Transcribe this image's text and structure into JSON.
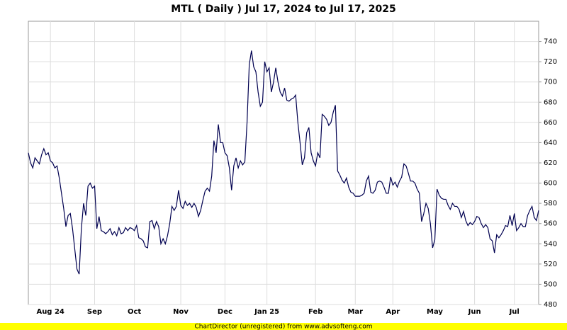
{
  "chart_data": {
    "type": "line",
    "title": "MTL ( Daily ) Jul 17, 2024 to Jul 17, 2025",
    "footer": "ChartDirector (unregistered) from www.advsofteng.com",
    "color": "#000050",
    "grid": true,
    "y_axis_side": "right",
    "xlim": [
      0,
      231
    ],
    "xticks": [
      {
        "value": 10,
        "label": "Aug 24"
      },
      {
        "value": 30,
        "label": "Sep"
      },
      {
        "value": 48,
        "label": "Oct"
      },
      {
        "value": 69,
        "label": "Nov"
      },
      {
        "value": 89,
        "label": "Dec"
      },
      {
        "value": 108,
        "label": "Jan 25"
      },
      {
        "value": 130,
        "label": "Feb"
      },
      {
        "value": 148,
        "label": "Mar"
      },
      {
        "value": 165,
        "label": "Apr"
      },
      {
        "value": 184,
        "label": "May"
      },
      {
        "value": 202,
        "label": "Jun"
      },
      {
        "value": 220,
        "label": "Jul"
      }
    ],
    "ylim": [
      480,
      760
    ],
    "yticks": [
      480,
      500,
      520,
      540,
      560,
      580,
      600,
      620,
      640,
      660,
      680,
      700,
      720,
      740
    ],
    "values": [
      630,
      620,
      615,
      625,
      622,
      619,
      628,
      634,
      628,
      630,
      622,
      620,
      615,
      617,
      605,
      590,
      575,
      557,
      568,
      570,
      555,
      535,
      515,
      510,
      555,
      580,
      568,
      597,
      600,
      595,
      597,
      555,
      567,
      553,
      552,
      550,
      552,
      555,
      549,
      552,
      548,
      556,
      550,
      551,
      556,
      553,
      556,
      555,
      553,
      558,
      546,
      545,
      543,
      537,
      536,
      562,
      563,
      555,
      562,
      557,
      540,
      545,
      540,
      548,
      560,
      577,
      573,
      577,
      593,
      578,
      575,
      582,
      578,
      580,
      576,
      580,
      576,
      567,
      573,
      583,
      592,
      595,
      592,
      607,
      642,
      630,
      658,
      640,
      640,
      630,
      627,
      615,
      593,
      617,
      625,
      615,
      622,
      618,
      621,
      660,
      717,
      731,
      715,
      710,
      690,
      676,
      680,
      720,
      710,
      714,
      690,
      700,
      714,
      700,
      690,
      686,
      694,
      682,
      681,
      683,
      684,
      687,
      660,
      640,
      618,
      625,
      650,
      655,
      630,
      622,
      617,
      630,
      625,
      668,
      666,
      663,
      657,
      660,
      670,
      677,
      612,
      608,
      603,
      600,
      605,
      596,
      591,
      590,
      587,
      587,
      587,
      588,
      590,
      602,
      607,
      591,
      590,
      593,
      601,
      602,
      601,
      596,
      590,
      590,
      606,
      598,
      601,
      596,
      602,
      606,
      619,
      617,
      610,
      602,
      602,
      600,
      594,
      590,
      562,
      570,
      580,
      575,
      560,
      536,
      544,
      594,
      588,
      585,
      584,
      584,
      578,
      574,
      580,
      577,
      577,
      574,
      566,
      572,
      563,
      558,
      561,
      559,
      562,
      567,
      566,
      560,
      556,
      559,
      556,
      545,
      543,
      531,
      549,
      546,
      549,
      553,
      558,
      557,
      568,
      558,
      570,
      553,
      556,
      560,
      557,
      557,
      568,
      573,
      577,
      566,
      563,
      573
    ]
  }
}
